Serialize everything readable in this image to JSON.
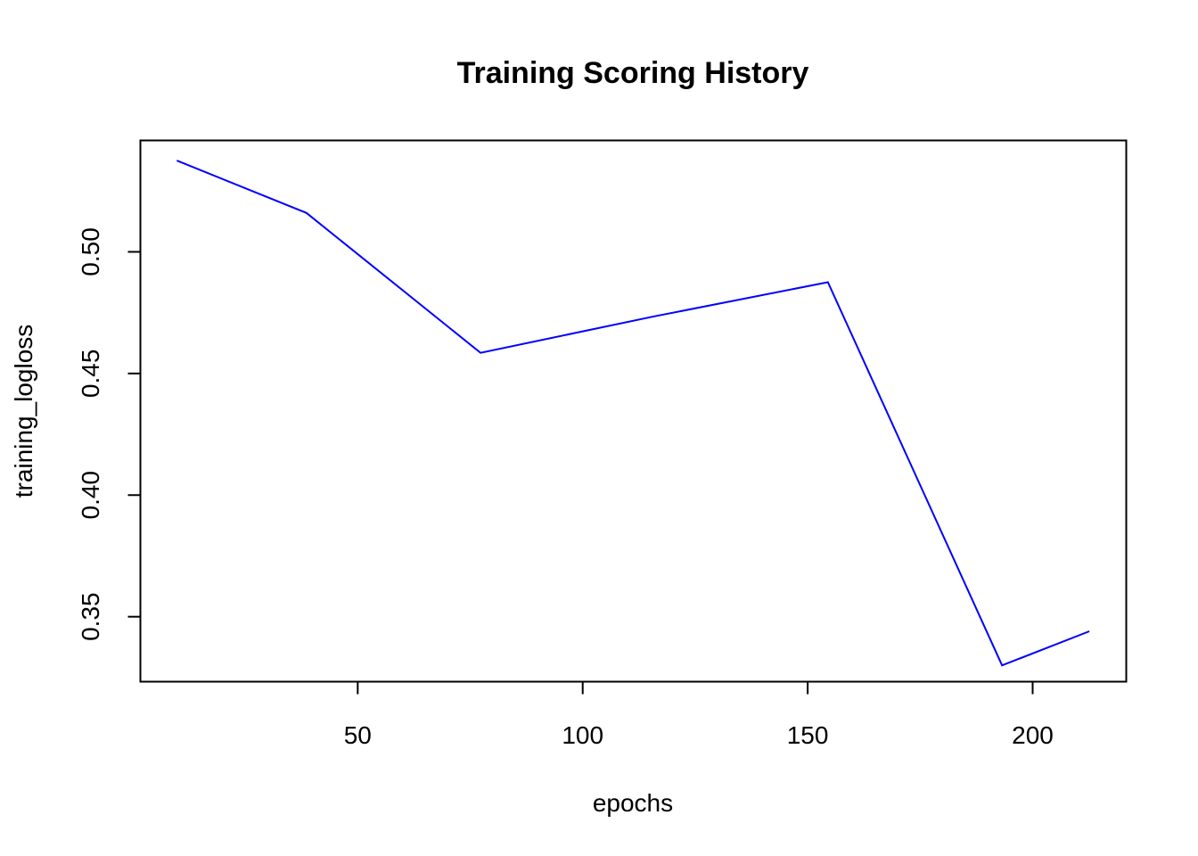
{
  "chart_data": {
    "type": "line",
    "title": "Training Scoring History",
    "xlabel": "epochs",
    "ylabel": "training_logloss",
    "xlim": [
      1.7,
      220.8
    ],
    "ylim": [
      0.3233,
      0.5458
    ],
    "xticks": [
      50,
      100,
      150,
      200
    ],
    "xtick_labels": [
      "50",
      "100",
      "150",
      "200"
    ],
    "yticks": [
      0.35,
      0.4,
      0.45,
      0.5
    ],
    "ytick_labels": [
      "0.35",
      "0.40",
      "0.45",
      "0.50"
    ],
    "grid": false,
    "series": [
      {
        "color": "#0000ff",
        "x": [
          9.8,
          38.6,
          77.3,
          116.0,
          154.5,
          193.2,
          212.6
        ],
        "y": [
          0.5375,
          0.516,
          0.4585,
          0.4735,
          0.4875,
          0.33,
          0.344
        ]
      }
    ]
  }
}
